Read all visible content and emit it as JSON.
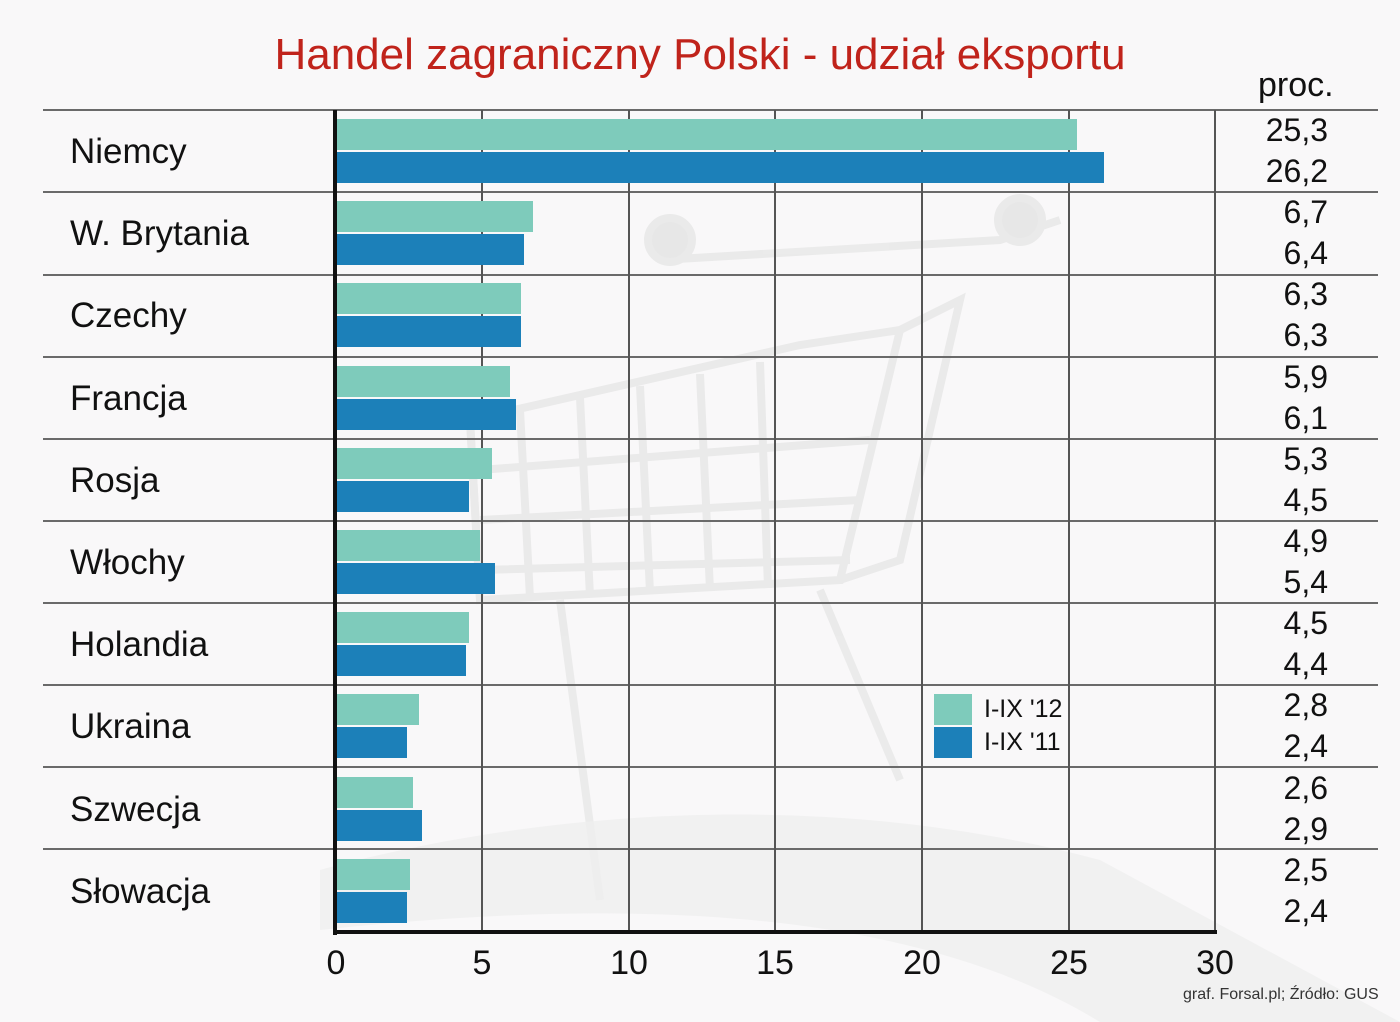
{
  "chart_data": {
    "type": "bar",
    "orientation": "horizontal",
    "title": "Handel zagraniczny Polski  - udział eksportu",
    "unit_label": "proc.",
    "xlabel": "",
    "ylabel": "",
    "xlim": [
      0,
      30
    ],
    "x_ticks": [
      "0",
      "5",
      "10",
      "15",
      "20",
      "25",
      "30"
    ],
    "grid": true,
    "legend_position": "inside-right",
    "categories": [
      "Niemcy",
      "W. Brytania",
      "Czechy",
      "Francja",
      "Rosja",
      "Włochy",
      "Holandia",
      "Ukraina",
      "Szwecja",
      "Słowacja"
    ],
    "series": [
      {
        "name": "I-IX '12",
        "color": "#7ecbbb",
        "values": [
          25.3,
          6.7,
          6.3,
          5.9,
          5.3,
          4.9,
          4.5,
          2.8,
          2.6,
          2.5
        ]
      },
      {
        "name": "I-IX '11",
        "color": "#1c80b9",
        "values": [
          26.2,
          6.4,
          6.3,
          6.1,
          4.5,
          5.4,
          4.4,
          2.4,
          2.9,
          2.4
        ]
      }
    ],
    "value_labels": {
      "a": [
        "25,3",
        "6,7",
        "6,3",
        "5,9",
        "5,3",
        "4,9",
        "4,5",
        "2,8",
        "2,6",
        "2,5"
      ],
      "b": [
        "26,2",
        "6,4",
        "6,3",
        "6,1",
        "4,5",
        "5,4",
        "4,4",
        "2,4",
        "2,9",
        "2,4"
      ]
    },
    "source": "graf. Forsal.pl; Źródło: GUS"
  },
  "title_color": "#c0231b",
  "background_image": "shopping-cart watermark"
}
